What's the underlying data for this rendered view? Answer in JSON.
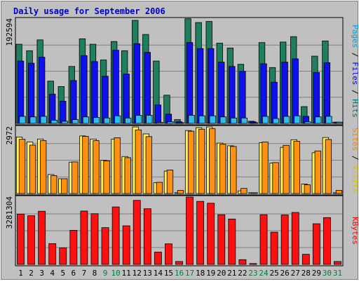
{
  "chart_data": {
    "type": "bar",
    "title": "Daily usage for September 2006",
    "categories": [
      "1",
      "2",
      "3",
      "4",
      "5",
      "6",
      "7",
      "8",
      "9",
      "10",
      "11",
      "12",
      "13",
      "14",
      "15",
      "16",
      "17",
      "18",
      "19",
      "20",
      "21",
      "22",
      "23",
      "24",
      "25",
      "26",
      "27",
      "28",
      "29",
      "30",
      "31"
    ],
    "weekend_days": [
      "9",
      "10",
      "16",
      "17",
      "23",
      "24",
      "30",
      "31"
    ],
    "panels": [
      {
        "id": "top",
        "ymax_label": "192594",
        "ylim": [
          0,
          192594
        ],
        "right_label_parts": [
          {
            "text": "Pages",
            "color": "#00a0e0"
          },
          {
            "text": " / ",
            "color": "#000000"
          },
          {
            "text": "Files",
            "color": "#0000ff"
          },
          {
            "text": " / ",
            "color": "#000000"
          },
          {
            "text": "Hits",
            "color": "#007070"
          }
        ],
        "series": [
          {
            "name": "Hits",
            "color": "#1e7e5e",
            "values": [
              146000,
              134000,
              154000,
              78000,
              68000,
              105000,
              156000,
              146000,
              117000,
              151000,
              134000,
              190000,
              164000,
              115000,
              52000,
              7000,
              193000,
              186000,
              188000,
              148000,
              139000,
              109000,
              4000,
              149000,
              103000,
              150000,
              160000,
              31000,
              124000,
              152000,
              0
            ]
          },
          {
            "name": "Files",
            "color": "#1010ee",
            "values": [
              115000,
              111000,
              122000,
              54000,
              41000,
              79000,
              125000,
              114000,
              87000,
              135000,
              91000,
              147000,
              131000,
              34000,
              17000,
              3000,
              149000,
              138000,
              138000,
              113000,
              105000,
              96000,
              3000,
              110000,
              76000,
              113000,
              119000,
              13000,
              94000,
              112000,
              0
            ]
          },
          {
            "name": "Pages",
            "color": "#33bbee",
            "values": [
              13000,
              12000,
              13000,
              6000,
              4000,
              7000,
              12000,
              11000,
              10000,
              14000,
              10000,
              15000,
              15000,
              2000,
              3000,
              1000,
              15000,
              14000,
              14000,
              12000,
              10000,
              10000,
              1000,
              13000,
              9000,
              13000,
              14000,
              3000,
              12000,
              13000,
              0
            ]
          }
        ]
      },
      {
        "id": "mid",
        "ymax_label": "2972",
        "ylim": [
          0,
          2972
        ],
        "right_label_parts": [
          {
            "text": "Sites",
            "color": "#ff8000"
          },
          {
            "text": " / ",
            "color": "#000000"
          },
          {
            "text": "Visits",
            "color": "#e0c000"
          }
        ],
        "series": [
          {
            "name": "Visits",
            "color": "#ffee55",
            "values": [
              2520,
              2300,
              2430,
              850,
              660,
              1400,
              2570,
              2430,
              1480,
              2430,
              1650,
              2970,
              2660,
              480,
              1000,
              0,
              2810,
              2940,
              2970,
              2250,
              2130,
              120,
              0,
              2270,
              1360,
              2060,
              2400,
              420,
              1820,
              2500,
              0
            ]
          },
          {
            "name": "Sites",
            "color": "#ff9010",
            "values": [
              2420,
              2160,
              2360,
              800,
              660,
              1410,
              2550,
              2360,
              1460,
              2490,
              1600,
              2840,
              2540,
              500,
              1050,
              140,
              2780,
              2870,
              2890,
              2200,
              2100,
              230,
              0,
              2300,
              1380,
              2150,
              2330,
              390,
              1900,
              2410,
              140
            ]
          }
        ]
      },
      {
        "id": "bot",
        "ymax_label": "3281304",
        "ylim": [
          0,
          3281304
        ],
        "right_label_parts": [
          {
            "text": "KBytes",
            "color": "#ff0000"
          }
        ],
        "series": [
          {
            "name": "KBytes",
            "color": "#ff1010",
            "values": [
              2450000,
              2370000,
              2590000,
              1010000,
              800000,
              1660000,
              2600000,
              2470000,
              1790000,
              2800000,
              1880000,
              3120000,
              2710000,
              600000,
              1000000,
              140000,
              3281304,
              3070000,
              2980000,
              2420000,
              2210000,
              230000,
              0,
              2420000,
              1570000,
              2410000,
              2530000,
              490000,
              1980000,
              2280000,
              140000
            ]
          }
        ]
      }
    ]
  }
}
